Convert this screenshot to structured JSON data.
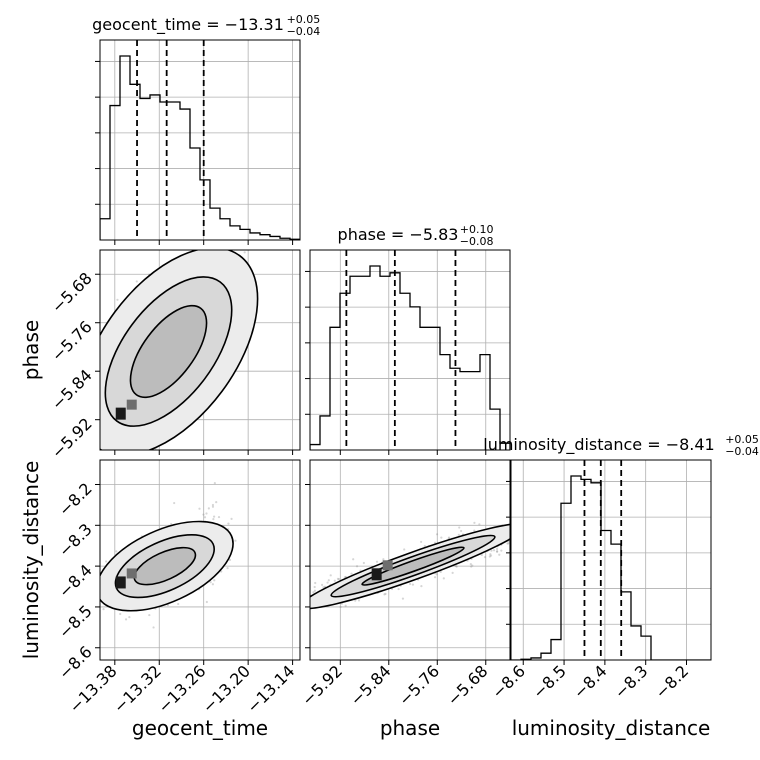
{
  "chart_data": {
    "type": "corner",
    "parameters": [
      "geocent_time",
      "phase",
      "luminosity_distance"
    ],
    "grid": true,
    "panel_order": "lower-triangle",
    "titles": [
      {
        "param": "geocent_time",
        "text": "geocent_time = −13.31",
        "plus": "+0.05",
        "minus": "−0.04"
      },
      {
        "param": "phase",
        "text": "phase = −5.83",
        "plus": "+0.10",
        "minus": "−0.08"
      },
      {
        "param": "luminosity_distance",
        "text": "luminosity_distance = −8.41",
        "plus": "+0.05",
        "minus": "−0.04"
      }
    ],
    "axes": {
      "geocent_time": {
        "label": "geocent_time",
        "range": [
          -13.4,
          -13.13
        ],
        "ticks": [
          -13.38,
          -13.32,
          -13.26,
          -13.2,
          -13.14
        ],
        "tick_labels": [
          "−13.38",
          "−13.32",
          "−13.26",
          "−13.20",
          "−13.14"
        ]
      },
      "phase": {
        "label": "phase",
        "range": [
          -5.97,
          -5.64
        ],
        "ticks": [
          -5.92,
          -5.84,
          -5.76,
          -5.68
        ],
        "tick_labels": [
          "−5.92",
          "−5.84",
          "−5.76",
          "−5.68"
        ]
      },
      "luminosity_distance": {
        "label": "luminosity_distance",
        "range": [
          -8.63,
          -8.14
        ],
        "ticks": [
          -8.6,
          -8.5,
          -8.4,
          -8.3,
          -8.2
        ],
        "tick_labels": [
          "−8.6",
          "−8.5",
          "−8.4",
          "−8.3",
          "−8.2"
        ]
      }
    },
    "histograms": [
      {
        "param": "geocent_time",
        "bin_edges": [
          -13.4,
          -13.3865,
          -13.373,
          -13.3595,
          -13.346,
          -13.3325,
          -13.319,
          -13.3055,
          -13.292,
          -13.2785,
          -13.265,
          -13.2515,
          -13.238,
          -13.2245,
          -13.211,
          -13.1975,
          -13.184,
          -13.1705,
          -13.157,
          -13.1435,
          -13.13
        ],
        "counts": [
          60,
          380,
          520,
          440,
          400,
          410,
          390,
          390,
          370,
          260,
          170,
          90,
          60,
          40,
          30,
          20,
          15,
          10,
          5,
          2
        ],
        "quantiles": [
          -13.35,
          -13.31,
          -13.26
        ]
      },
      {
        "param": "phase",
        "bin_edges": [
          -5.97,
          -5.9535,
          -5.937,
          -5.9205,
          -5.904,
          -5.8875,
          -5.871,
          -5.8545,
          -5.838,
          -5.8215,
          -5.805,
          -5.7885,
          -5.772,
          -5.7555,
          -5.739,
          -5.7225,
          -5.706,
          -5.6895,
          -5.673,
          -5.6565,
          -5.64
        ],
        "counts": [
          8,
          50,
          180,
          230,
          255,
          255,
          270,
          255,
          260,
          230,
          210,
          180,
          180,
          140,
          120,
          115,
          115,
          140,
          60,
          10
        ],
        "quantiles": [
          -5.91,
          -5.83,
          -5.73
        ]
      },
      {
        "param": "luminosity_distance",
        "bin_edges": [
          -8.63,
          -8.6055,
          -8.581,
          -8.5565,
          -8.532,
          -8.5075,
          -8.483,
          -8.4585,
          -8.434,
          -8.4095,
          -8.385,
          -8.3605,
          -8.336,
          -8.3115,
          -8.287,
          -8.2625,
          -8.238,
          -8.2135,
          -8.189,
          -8.1645,
          -8.14
        ],
        "counts": [
          0,
          1,
          3,
          10,
          30,
          230,
          270,
          265,
          260,
          190,
          170,
          100,
          50,
          35,
          0,
          0,
          0,
          0,
          0,
          0
        ],
        "quantiles": [
          -8.45,
          -8.41,
          -8.36
        ]
      }
    ],
    "density_2d": [
      {
        "x": "geocent_time",
        "y": "phase",
        "samples_linear_fit": {
          "x_start": -13.385,
          "y_start": -5.935,
          "x_end": -13.23,
          "y_end": -5.68
        },
        "spread_y": 0.05,
        "peak": [
          -13.372,
          -5.91
        ],
        "contour_levels": [
          0.39,
          0.86,
          0.99
        ]
      },
      {
        "x": "geocent_time",
        "y": "luminosity_distance",
        "samples_linear_fit": {
          "x_start": -13.385,
          "y_start": -8.46,
          "x_end": -13.24,
          "y_end": -8.34
        },
        "spread_y": 0.04,
        "peak": [
          -13.372,
          -8.44
        ],
        "contour_levels": [
          0.39,
          0.86,
          0.99
        ]
      },
      {
        "x": "phase",
        "y": "luminosity_distance",
        "samples_linear_fit": {
          "x_start": -5.95,
          "y_start": -8.48,
          "x_end": -5.65,
          "y_end": -8.32
        },
        "spread_y": 0.015,
        "peak": [
          -5.86,
          -8.42
        ],
        "contour_levels": [
          0.39,
          0.86,
          0.99
        ]
      }
    ],
    "colors": {
      "line": "#000000",
      "points": "#8a8a8a",
      "grid": "#b0b0b0"
    }
  }
}
